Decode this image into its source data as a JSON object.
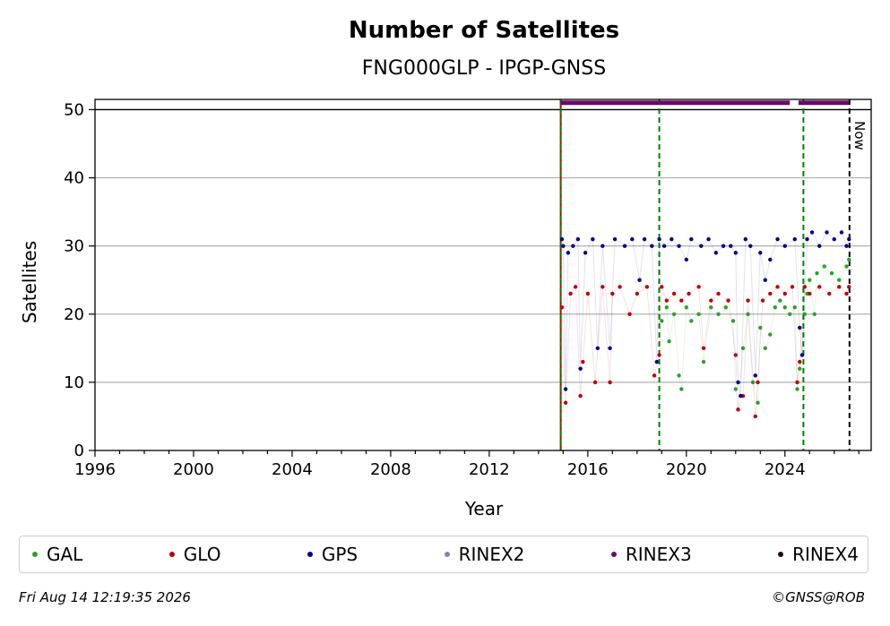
{
  "chart_data": {
    "type": "scatter",
    "title": "Number of Satellites",
    "subtitle": "FNG000GLP - IPGP-GNSS",
    "xlabel": "Year",
    "ylabel": "Satellites",
    "xlim": [
      1996,
      2027.5
    ],
    "ylim": [
      0,
      51.5
    ],
    "x_ticks": [
      "1996",
      "2000",
      "2004",
      "2008",
      "2012",
      "2016",
      "2020",
      "2024"
    ],
    "y_ticks": [
      "0",
      "10",
      "20",
      "30",
      "40",
      "50"
    ],
    "grid": "horizontal",
    "now_label": "Now",
    "now_x": 2026.62,
    "limit_line_y": 50,
    "vlines": [
      {
        "x": 2014.9,
        "color": "#c00000",
        "style": "solid"
      },
      {
        "x": 2014.9,
        "color": "#008000",
        "style": "dashed"
      },
      {
        "x": 2018.9,
        "color": "#008000",
        "style": "dashed"
      },
      {
        "x": 2024.75,
        "color": "#008000",
        "style": "dashed"
      }
    ],
    "series": [
      {
        "name": "GAL",
        "color": "#2ca02c",
        "points": [
          [
            2019.0,
            19
          ],
          [
            2019.2,
            21
          ],
          [
            2019.3,
            16
          ],
          [
            2019.5,
            20
          ],
          [
            2019.7,
            11
          ],
          [
            2019.8,
            9
          ],
          [
            2020.0,
            21
          ],
          [
            2020.2,
            19
          ],
          [
            2020.5,
            20
          ],
          [
            2020.7,
            13
          ],
          [
            2021.0,
            21
          ],
          [
            2021.3,
            20
          ],
          [
            2021.6,
            21
          ],
          [
            2021.9,
            19
          ],
          [
            2022.0,
            9
          ],
          [
            2022.1,
            6
          ],
          [
            2022.3,
            15
          ],
          [
            2022.5,
            20
          ],
          [
            2022.7,
            10
          ],
          [
            2022.9,
            7
          ],
          [
            2023.0,
            18
          ],
          [
            2023.2,
            15
          ],
          [
            2023.4,
            17
          ],
          [
            2023.6,
            21
          ],
          [
            2023.8,
            22
          ],
          [
            2024.0,
            21
          ],
          [
            2024.2,
            20
          ],
          [
            2024.4,
            21
          ],
          [
            2024.5,
            9
          ],
          [
            2024.6,
            12
          ],
          [
            2024.8,
            20
          ],
          [
            2024.9,
            23
          ],
          [
            2025.0,
            25
          ],
          [
            2025.2,
            20
          ],
          [
            2025.3,
            26
          ],
          [
            2025.6,
            27
          ],
          [
            2025.9,
            26
          ],
          [
            2026.2,
            25
          ],
          [
            2026.5,
            27
          ],
          [
            2026.6,
            28
          ]
        ]
      },
      {
        "name": "GLO",
        "color": "#c00000",
        "points": [
          [
            2014.95,
            21
          ],
          [
            2015.1,
            7
          ],
          [
            2015.3,
            23
          ],
          [
            2015.5,
            24
          ],
          [
            2015.7,
            8
          ],
          [
            2015.8,
            13
          ],
          [
            2016.0,
            23
          ],
          [
            2016.3,
            10
          ],
          [
            2016.6,
            24
          ],
          [
            2016.9,
            10
          ],
          [
            2017.0,
            23
          ],
          [
            2017.3,
            24
          ],
          [
            2017.7,
            20
          ],
          [
            2018.0,
            23
          ],
          [
            2018.4,
            24
          ],
          [
            2018.7,
            11
          ],
          [
            2018.9,
            14
          ],
          [
            2019.0,
            24
          ],
          [
            2019.2,
            22
          ],
          [
            2019.5,
            23
          ],
          [
            2019.8,
            22
          ],
          [
            2020.1,
            23
          ],
          [
            2020.5,
            24
          ],
          [
            2020.7,
            15
          ],
          [
            2021.0,
            22
          ],
          [
            2021.3,
            23
          ],
          [
            2021.7,
            22
          ],
          [
            2022.0,
            14
          ],
          [
            2022.1,
            6
          ],
          [
            2022.3,
            8
          ],
          [
            2022.5,
            22
          ],
          [
            2022.8,
            5
          ],
          [
            2022.9,
            10
          ],
          [
            2023.1,
            22
          ],
          [
            2023.4,
            23
          ],
          [
            2023.7,
            24
          ],
          [
            2024.0,
            23
          ],
          [
            2024.3,
            24
          ],
          [
            2024.5,
            10
          ],
          [
            2024.6,
            13
          ],
          [
            2024.8,
            24
          ],
          [
            2025.0,
            23
          ],
          [
            2025.4,
            24
          ],
          [
            2025.8,
            23
          ],
          [
            2026.2,
            24
          ],
          [
            2026.5,
            23
          ],
          [
            2026.6,
            24
          ]
        ]
      },
      {
        "name": "GPS",
        "color": "#00008b",
        "points": [
          [
            2014.95,
            31
          ],
          [
            2015.0,
            30
          ],
          [
            2015.1,
            9
          ],
          [
            2015.2,
            29
          ],
          [
            2015.4,
            30
          ],
          [
            2015.6,
            31
          ],
          [
            2015.7,
            12
          ],
          [
            2015.9,
            29
          ],
          [
            2016.2,
            31
          ],
          [
            2016.4,
            15
          ],
          [
            2016.6,
            30
          ],
          [
            2016.9,
            15
          ],
          [
            2017.1,
            31
          ],
          [
            2017.5,
            30
          ],
          [
            2017.8,
            31
          ],
          [
            2018.1,
            25
          ],
          [
            2018.3,
            31
          ],
          [
            2018.6,
            30
          ],
          [
            2018.8,
            13
          ],
          [
            2018.9,
            31
          ],
          [
            2019.1,
            30
          ],
          [
            2019.4,
            31
          ],
          [
            2019.7,
            30
          ],
          [
            2020.0,
            28
          ],
          [
            2020.2,
            31
          ],
          [
            2020.6,
            30
          ],
          [
            2020.9,
            31
          ],
          [
            2021.2,
            29
          ],
          [
            2021.5,
            30
          ],
          [
            2021.8,
            30
          ],
          [
            2022.0,
            29
          ],
          [
            2022.1,
            10
          ],
          [
            2022.2,
            8
          ],
          [
            2022.4,
            31
          ],
          [
            2022.6,
            30
          ],
          [
            2022.8,
            11
          ],
          [
            2023.0,
            29
          ],
          [
            2023.2,
            25
          ],
          [
            2023.4,
            28
          ],
          [
            2023.7,
            31
          ],
          [
            2024.0,
            30
          ],
          [
            2024.4,
            31
          ],
          [
            2024.6,
            18
          ],
          [
            2024.7,
            14
          ],
          [
            2024.9,
            31
          ],
          [
            2025.1,
            32
          ],
          [
            2025.4,
            30
          ],
          [
            2025.7,
            32
          ],
          [
            2026.0,
            31
          ],
          [
            2026.3,
            32
          ],
          [
            2026.5,
            30
          ],
          [
            2026.6,
            31
          ]
        ]
      },
      {
        "name": "RINEX2",
        "color": "#8a7cc0",
        "points": []
      },
      {
        "name": "RINEX3",
        "color": "#6a0a6a",
        "band": {
          "y": 51,
          "start": 2014.9,
          "end": 2026.6,
          "gap": [
            2024.2,
            2024.55
          ]
        }
      },
      {
        "name": "RINEX4",
        "color": "#1a0a1a",
        "points": []
      }
    ]
  },
  "legend": {
    "items": [
      {
        "label": "GAL",
        "color": "#2ca02c"
      },
      {
        "label": "GLO",
        "color": "#c00000"
      },
      {
        "label": "GPS",
        "color": "#00008b"
      },
      {
        "label": "RINEX2",
        "color": "#8a7cc0"
      },
      {
        "label": "RINEX3",
        "color": "#6a0a6a"
      },
      {
        "label": "RINEX4",
        "color": "#1a0a1a"
      }
    ]
  },
  "footer": {
    "timestamp": "Fri Aug 14 12:19:35 2026",
    "credit": "©GNSS@ROB"
  }
}
